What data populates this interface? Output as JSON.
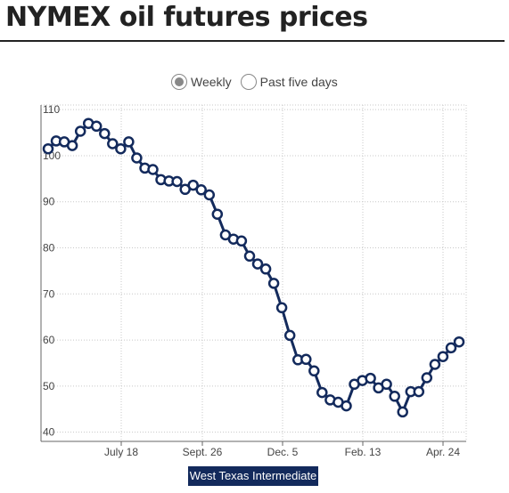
{
  "title": "NYMEX oil futures prices",
  "controls": {
    "options": [
      {
        "label": "Weekly",
        "selected": true
      },
      {
        "label": "Past five days",
        "selected": false
      }
    ]
  },
  "colors": {
    "series": "#132a5c",
    "grid": "#c8c8c8",
    "axis": "#666666",
    "text": "#444444"
  },
  "chart_data": {
    "type": "line",
    "title": "",
    "xlabel": "",
    "ylabel": "",
    "ylim": [
      38,
      111
    ],
    "grid": true,
    "x_tick_labels": [
      "July 18",
      "Sept. 26",
      "Dec. 5",
      "Feb. 13",
      "Apr. 24"
    ],
    "y_tick_labels": [
      "40",
      "50",
      "60",
      "70",
      "80",
      "90",
      "100",
      "110"
    ],
    "series": [
      {
        "name": "West Texas Intermediate",
        "values": [
          101.5,
          103.2,
          103.0,
          102.2,
          105.3,
          107.0,
          106.4,
          104.8,
          102.6,
          101.5,
          103.0,
          99.5,
          97.3,
          97.0,
          94.8,
          94.5,
          94.4,
          92.7,
          93.6,
          92.6,
          91.5,
          87.3,
          82.8,
          81.9,
          81.5,
          78.2,
          76.5,
          75.4,
          72.3,
          67.0,
          61.0,
          55.7,
          55.8,
          53.3,
          48.6,
          47.0,
          46.5,
          45.7,
          50.4,
          51.2,
          51.7,
          49.6,
          50.4,
          47.8,
          44.4,
          48.8,
          48.8,
          51.8,
          54.7,
          56.4,
          58.3,
          59.6
        ]
      }
    ],
    "legend": {
      "label": "West Texas Intermediate",
      "position": "bottom"
    }
  }
}
